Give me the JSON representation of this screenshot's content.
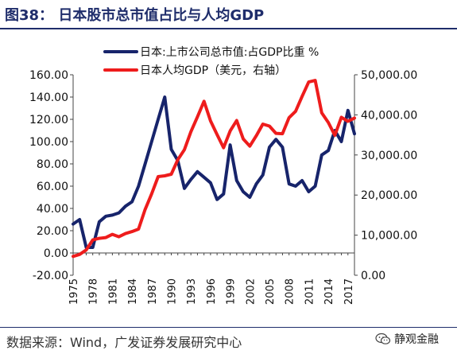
{
  "header": {
    "title": "图38： 日本股市总市值占比与人均GDP"
  },
  "footer": {
    "source": "数据来源：Wind，广发证券发展研究中心",
    "watermark": "静观金融",
    "watermark_icon": "wechat-icon"
  },
  "chart_data": {
    "type": "line",
    "legend_position": "top",
    "grid": false,
    "x": [
      1975,
      1976,
      1977,
      1978,
      1979,
      1980,
      1981,
      1982,
      1983,
      1984,
      1985,
      1986,
      1987,
      1988,
      1989,
      1990,
      1991,
      1992,
      1993,
      1994,
      1995,
      1996,
      1997,
      1998,
      1999,
      2000,
      2001,
      2002,
      2003,
      2004,
      2005,
      2006,
      2007,
      2008,
      2009,
      2010,
      2011,
      2012,
      2013,
      2014,
      2015,
      2016,
      2017,
      2018
    ],
    "x_ticks": [
      "1975",
      "1978",
      "1981",
      "1984",
      "1987",
      "1990",
      "1993",
      "1996",
      "1999",
      "2002",
      "2005",
      "2008",
      "2011",
      "2014",
      "2017"
    ],
    "y_left": {
      "range": [
        -20,
        160
      ],
      "ticks": [
        "-20.00",
        "0.00",
        "20.00",
        "40.00",
        "60.00",
        "80.00",
        "100.00",
        "120.00",
        "140.00",
        "160.00"
      ]
    },
    "y_right": {
      "range": [
        0,
        50000
      ],
      "ticks": [
        "0.00",
        "10,000.00",
        "20,000.00",
        "30,000.00",
        "40,000.00",
        "50,000.00"
      ]
    },
    "series": [
      {
        "name": "日本:上市公司总市值:占GDP比重 %",
        "axis": "left",
        "color": "#17246b",
        "values": [
          26,
          30,
          5,
          5,
          28,
          33,
          34,
          36,
          42,
          46,
          60,
          80,
          100,
          120,
          140,
          93,
          83,
          58,
          66,
          73,
          68,
          63,
          48,
          53,
          97,
          65,
          55,
          50,
          62,
          70,
          95,
          102,
          95,
          62,
          60,
          65,
          55,
          60,
          88,
          92,
          110,
          100,
          128,
          107
        ]
      },
      {
        "name": "日本人均GDP（美元，右轴）",
        "axis": "right",
        "color": "#ee1c1c",
        "values": [
          4700,
          5200,
          6300,
          8800,
          9200,
          9400,
          10200,
          9600,
          10400,
          10900,
          11500,
          16400,
          20300,
          24600,
          24800,
          25200,
          28800,
          31300,
          35800,
          39500,
          43400,
          38500,
          35100,
          31800,
          36000,
          38600,
          34000,
          32200,
          34800,
          37700,
          37200,
          35400,
          35300,
          39300,
          40900,
          44600,
          48200,
          48600,
          40500,
          38100,
          34900,
          39400,
          38400,
          39200
        ]
      }
    ]
  }
}
